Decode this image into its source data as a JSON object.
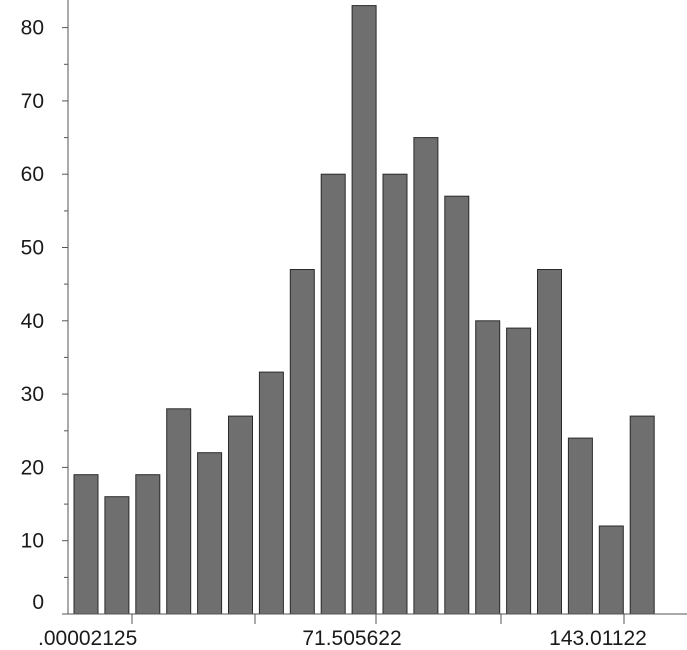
{
  "chart_data": {
    "type": "bar",
    "title": "",
    "xlabel": "",
    "ylabel": "",
    "values": [
      19,
      16,
      19,
      28,
      22,
      27,
      33,
      47,
      60,
      83,
      60,
      65,
      57,
      40,
      39,
      47,
      24,
      12,
      27
    ],
    "ylim": [
      0,
      83
    ],
    "y_ticks": [
      "0",
      "10",
      "20",
      "30",
      "40",
      "50",
      "60",
      "70",
      "80"
    ],
    "x_tick_labels": [
      ".00002125",
      "71.505622",
      "143.01122"
    ],
    "bar_color": "#6f6f6f",
    "bar_edge_color": "#2a2a2a",
    "grid": false,
    "legend": "none"
  }
}
